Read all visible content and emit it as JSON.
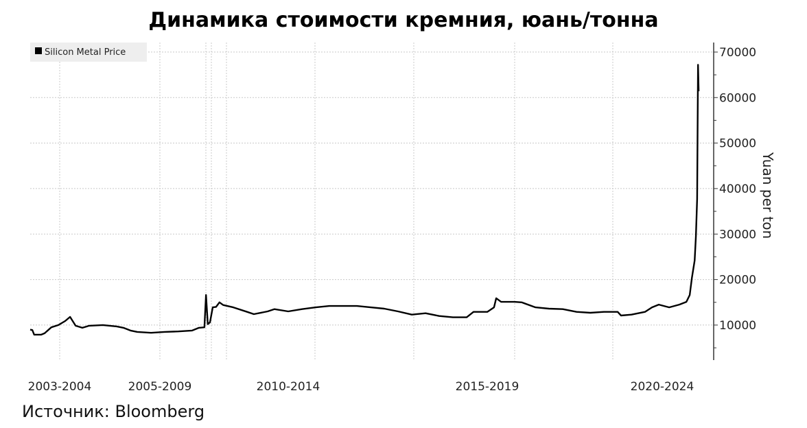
{
  "title": "Динамика стоимости кремния, юань/тонна",
  "source": "Источник: Bloomberg",
  "chart_data": {
    "type": "line",
    "title": "Динамика стоимости кремния, юань/тонна",
    "xlabel": "",
    "ylabel": "Yuan per ton",
    "x_tick_labels": [
      "2003-2004",
      "2005-2009",
      "2010-2014",
      "2015-2019",
      "2020-2024"
    ],
    "y_ticks": [
      10000,
      20000,
      30000,
      40000,
      50000,
      60000,
      70000
    ],
    "y_tick_labels": [
      "10000",
      "20000",
      "30000",
      "40000",
      "50000",
      "60000",
      "70000"
    ],
    "ylim": [
      2300,
      72100
    ],
    "xlim": [
      2002.5,
      2024.78
    ],
    "grid": true,
    "legend_position": "top-left",
    "y_axis_side": "right",
    "line_color": "#000000",
    "series": [
      {
        "name": "Silicon Metal Price",
        "x": [
          2002.5,
          2002.57,
          2002.63,
          2002.86,
          2002.97,
          2003.19,
          2003.42,
          2003.64,
          2003.8,
          2003.98,
          2004.2,
          2004.42,
          2004.87,
          2005.32,
          2005.54,
          2005.77,
          2005.99,
          2006.44,
          2006.88,
          2007.33,
          2007.78,
          2008.0,
          2008.18,
          2008.23,
          2008.29,
          2008.36,
          2008.45,
          2008.56,
          2008.67,
          2008.79,
          2009.12,
          2009.57,
          2009.79,
          2010.24,
          2010.46,
          2010.91,
          2011.36,
          2011.81,
          2012.25,
          2012.7,
          2013.15,
          2013.6,
          2014.04,
          2014.49,
          2014.94,
          2015.39,
          2015.83,
          2016.28,
          2016.73,
          2016.95,
          2017.4,
          2017.62,
          2017.69,
          2017.85,
          2018.29,
          2018.52,
          2018.97,
          2019.41,
          2019.86,
          2020.31,
          2020.76,
          2021.2,
          2021.65,
          2021.76,
          2022.1,
          2022.54,
          2022.77,
          2022.99,
          2023.33,
          2023.66,
          2023.89,
          2024.0,
          2024.07,
          2024.16,
          2024.2,
          2024.24,
          2024.27,
          2024.29
        ],
        "values": [
          9000,
          8900,
          7900,
          7900,
          8200,
          9500,
          10000,
          10900,
          11800,
          9850,
          9400,
          9850,
          10000,
          9700,
          9400,
          8800,
          8500,
          8300,
          8500,
          8600,
          8800,
          9400,
          9500,
          16600,
          10200,
          10600,
          13900,
          14000,
          15000,
          14400,
          13900,
          12900,
          12400,
          13000,
          13500,
          13000,
          13500,
          13900,
          14200,
          14200,
          14200,
          13900,
          13600,
          13000,
          12300,
          12600,
          12000,
          11700,
          11700,
          12900,
          12900,
          13900,
          15900,
          15100,
          15100,
          15000,
          13900,
          13600,
          13500,
          12900,
          12700,
          12900,
          12900,
          12100,
          12300,
          12900,
          13900,
          14500,
          13900,
          14500,
          15100,
          16600,
          20400,
          24200,
          29500,
          37700,
          67200,
          61400
        ]
      }
    ]
  }
}
